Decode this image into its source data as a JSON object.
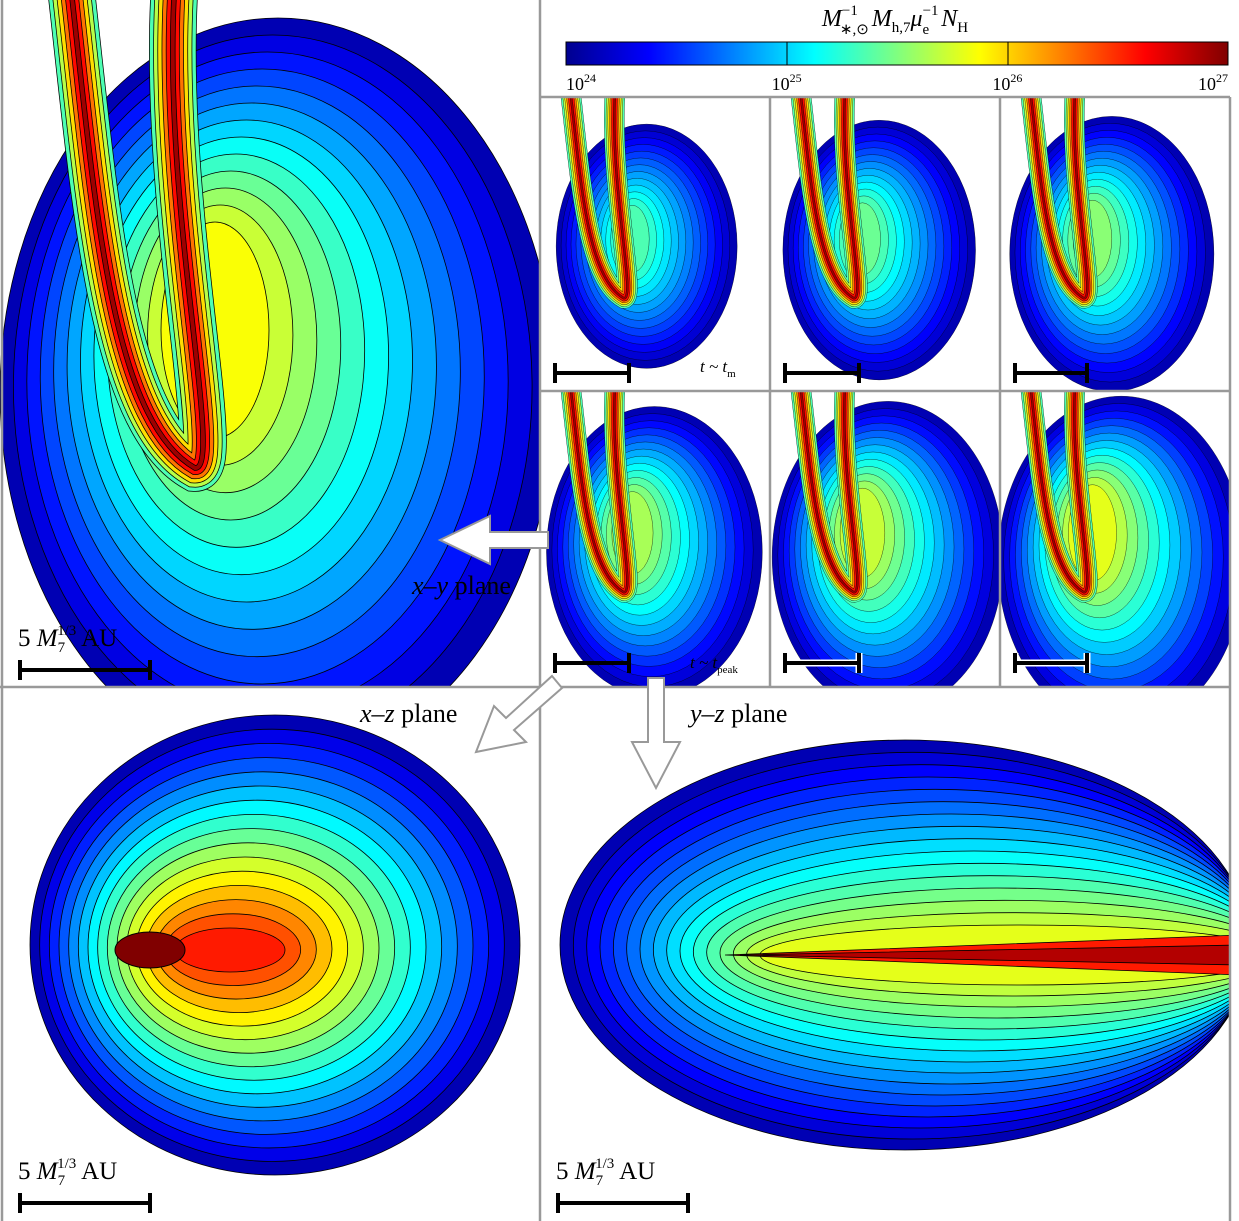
{
  "colorbar": {
    "label": [
      "M",
      "−1",
      "∗,⊙",
      "M",
      "h,7",
      "μ",
      "−1",
      "e",
      "N",
      "H"
    ],
    "ticks": [
      {
        "base": "10",
        "exp": "24"
      },
      {
        "base": "10",
        "exp": "25"
      },
      {
        "base": "10",
        "exp": "26"
      },
      {
        "base": "10",
        "exp": "27"
      }
    ]
  },
  "time_labels": [
    {
      "main": "t ~ t",
      "sub": "m"
    },
    {
      "main": "t ~ t",
      "sub": "peak"
    }
  ],
  "planes": [
    {
      "axes": "x–y",
      "word": " plane"
    },
    {
      "axes": "x–z",
      "word": " plane"
    },
    {
      "axes": "y–z",
      "word": " plane"
    }
  ],
  "scale_bars": [
    {
      "number": "5 ",
      "symbol": "M",
      "sub": "7",
      "sup": "1/3",
      "unit": " AU"
    },
    {
      "number": "5 ",
      "symbol": "M",
      "sub": "7",
      "sup": "1/3",
      "unit": " AU"
    },
    {
      "number": "5 ",
      "symbol": "M",
      "sub": "7",
      "sup": "1/3",
      "unit": " AU"
    }
  ]
}
